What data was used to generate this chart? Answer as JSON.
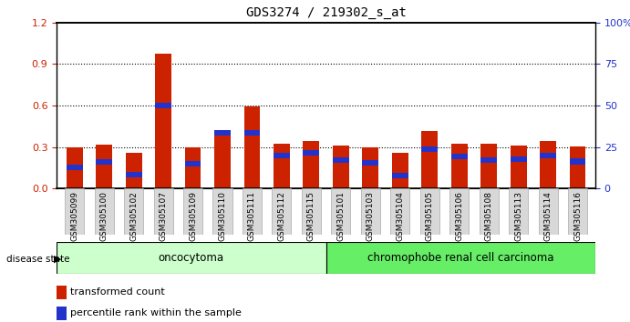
{
  "title": "GDS3274 / 219302_s_at",
  "samples": [
    "GSM305099",
    "GSM305100",
    "GSM305102",
    "GSM305107",
    "GSM305109",
    "GSM305110",
    "GSM305111",
    "GSM305112",
    "GSM305115",
    "GSM305101",
    "GSM305103",
    "GSM305104",
    "GSM305105",
    "GSM305106",
    "GSM305108",
    "GSM305113",
    "GSM305114",
    "GSM305116"
  ],
  "red_values": [
    0.295,
    0.315,
    0.255,
    0.975,
    0.295,
    0.42,
    0.595,
    0.325,
    0.34,
    0.31,
    0.295,
    0.255,
    0.415,
    0.32,
    0.32,
    0.31,
    0.345,
    0.305
  ],
  "blue_bottom": [
    0.13,
    0.17,
    0.08,
    0.58,
    0.16,
    0.38,
    0.38,
    0.22,
    0.24,
    0.185,
    0.165,
    0.075,
    0.265,
    0.21,
    0.185,
    0.19,
    0.22,
    0.175
  ],
  "blue_height": [
    0.04,
    0.04,
    0.04,
    0.04,
    0.04,
    0.04,
    0.04,
    0.04,
    0.04,
    0.04,
    0.04,
    0.04,
    0.04,
    0.04,
    0.04,
    0.04,
    0.04,
    0.04
  ],
  "group1_label": "oncocytoma",
  "group2_label": "chromophobe renal cell carcinoma",
  "group1_count": 9,
  "group2_count": 9,
  "disease_state_label": "disease state",
  "legend_red": "transformed count",
  "legend_blue": "percentile rank within the sample",
  "ylim_left": [
    0,
    1.2
  ],
  "ylim_right": [
    0,
    100
  ],
  "yticks_left": [
    0,
    0.3,
    0.6,
    0.9,
    1.2
  ],
  "yticks_right": [
    0,
    25,
    50,
    75,
    100
  ],
  "bar_color_red": "#cc2200",
  "bar_color_blue": "#2233cc",
  "group1_bg": "#ccffcc",
  "group2_bg": "#66ee66",
  "tick_label_color_left": "#cc2200",
  "tick_label_color_right": "#2233cc",
  "bar_width": 0.55,
  "figsize": [
    6.91,
    3.54
  ],
  "dpi": 100
}
